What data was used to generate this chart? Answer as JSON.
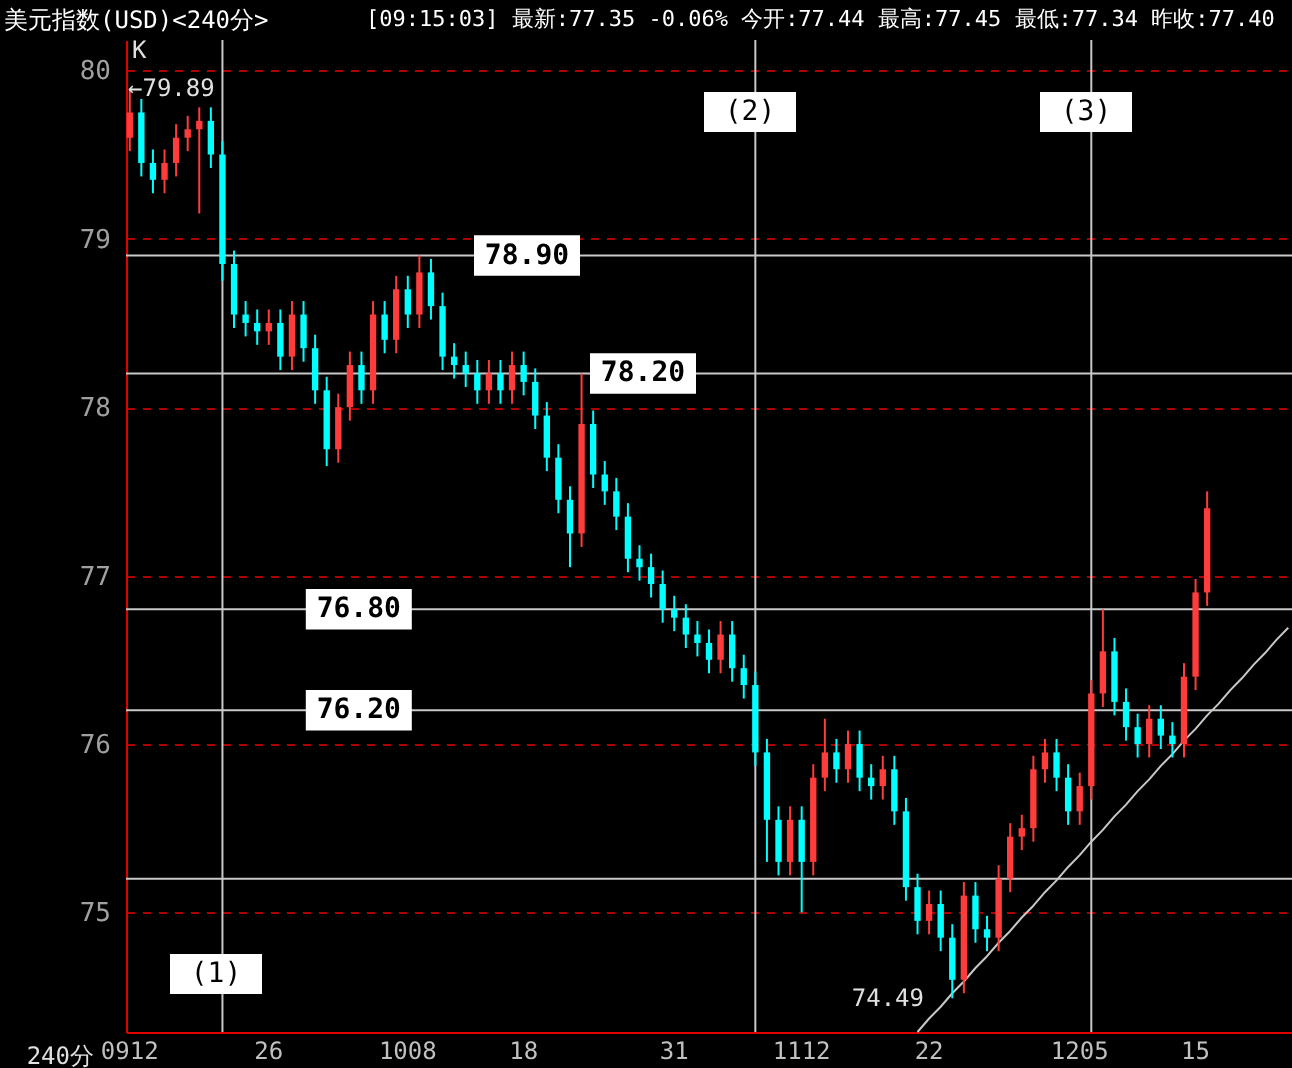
{
  "chart_data": {
    "type": "candlestick",
    "title": "美元指数(USD)<240分>",
    "subtitle": "[09:15:03] 最新:77.35 -0.06% 今开:77.44 最高:77.45 最低:77.34 昨收:77.40",
    "categories": [
      "0912",
      null,
      null,
      null,
      null,
      null,
      null,
      null,
      null,
      null,
      null,
      null,
      "26",
      null,
      null,
      null,
      null,
      null,
      null,
      null,
      null,
      null,
      null,
      null,
      "1008",
      null,
      null,
      null,
      null,
      null,
      null,
      null,
      null,
      null,
      "18",
      null,
      null,
      null,
      null,
      null,
      null,
      null,
      null,
      null,
      null,
      null,
      null,
      "31",
      null,
      null,
      null,
      null,
      null,
      null,
      null,
      null,
      null,
      null,
      "1112",
      null,
      null,
      null,
      null,
      null,
      null,
      null,
      null,
      null,
      null,
      "22",
      null,
      null,
      null,
      null,
      null,
      null,
      null,
      null,
      null,
      null,
      null,
      null,
      "1205",
      null,
      null,
      null,
      null,
      null,
      null,
      null,
      null,
      null,
      "15",
      null,
      null,
      null,
      null,
      null,
      null,
      null,
      null
    ],
    "ohlc": [
      [
        79.6,
        79.89,
        79.52,
        79.75
      ],
      [
        79.75,
        79.83,
        79.37,
        79.45
      ],
      [
        79.45,
        79.53,
        79.27,
        79.35
      ],
      [
        79.35,
        79.53,
        79.27,
        79.45
      ],
      [
        79.45,
        79.68,
        79.37,
        79.6
      ],
      [
        79.6,
        79.73,
        79.52,
        79.65
      ],
      [
        79.65,
        79.78,
        79.15,
        79.7
      ],
      [
        79.7,
        79.78,
        79.42,
        79.5
      ],
      [
        79.5,
        79.58,
        78.75,
        78.85
      ],
      [
        78.85,
        78.93,
        78.47,
        78.55
      ],
      [
        78.55,
        78.63,
        78.42,
        78.5
      ],
      [
        78.5,
        78.58,
        78.37,
        78.45
      ],
      [
        78.45,
        78.58,
        78.37,
        78.5
      ],
      [
        78.5,
        78.58,
        78.22,
        78.3
      ],
      [
        78.3,
        78.63,
        78.22,
        78.55
      ],
      [
        78.55,
        78.63,
        78.27,
        78.35
      ],
      [
        78.35,
        78.43,
        78.02,
        78.1
      ],
      [
        78.1,
        78.18,
        77.65,
        77.75
      ],
      [
        77.75,
        78.08,
        77.67,
        78.0
      ],
      [
        78.0,
        78.33,
        77.92,
        78.25
      ],
      [
        78.25,
        78.33,
        78.02,
        78.1
      ],
      [
        78.1,
        78.63,
        78.02,
        78.55
      ],
      [
        78.55,
        78.63,
        78.32,
        78.4
      ],
      [
        78.4,
        78.78,
        78.32,
        78.7
      ],
      [
        78.7,
        78.78,
        78.47,
        78.55
      ],
      [
        78.55,
        78.9,
        78.47,
        78.8
      ],
      [
        78.8,
        78.88,
        78.52,
        78.6
      ],
      [
        78.6,
        78.68,
        78.22,
        78.3
      ],
      [
        78.3,
        78.38,
        78.17,
        78.25
      ],
      [
        78.25,
        78.33,
        78.12,
        78.2
      ],
      [
        78.2,
        78.28,
        78.02,
        78.1
      ],
      [
        78.1,
        78.28,
        78.02,
        78.2
      ],
      [
        78.2,
        78.28,
        78.02,
        78.1
      ],
      [
        78.1,
        78.33,
        78.02,
        78.25
      ],
      [
        78.25,
        78.33,
        78.07,
        78.15
      ],
      [
        78.15,
        78.23,
        77.87,
        77.95
      ],
      [
        77.95,
        78.03,
        77.62,
        77.7
      ],
      [
        77.7,
        77.78,
        77.37,
        77.45
      ],
      [
        77.45,
        77.53,
        77.05,
        77.25
      ],
      [
        77.25,
        78.2,
        77.17,
        77.9
      ],
      [
        77.9,
        77.98,
        77.52,
        77.6
      ],
      [
        77.6,
        77.68,
        77.42,
        77.5
      ],
      [
        77.5,
        77.58,
        77.27,
        77.35
      ],
      [
        77.35,
        77.43,
        77.02,
        77.1
      ],
      [
        77.1,
        77.18,
        76.97,
        77.05
      ],
      [
        77.05,
        77.13,
        76.87,
        76.95
      ],
      [
        76.95,
        77.03,
        76.72,
        76.8
      ],
      [
        76.8,
        76.88,
        76.67,
        76.75
      ],
      [
        76.75,
        76.83,
        76.57,
        76.65
      ],
      [
        76.65,
        76.73,
        76.52,
        76.6
      ],
      [
        76.6,
        76.68,
        76.42,
        76.5
      ],
      [
        76.5,
        76.73,
        76.42,
        76.65
      ],
      [
        76.65,
        76.73,
        76.37,
        76.45
      ],
      [
        76.45,
        76.53,
        76.27,
        76.35
      ],
      [
        76.35,
        76.43,
        75.87,
        75.95
      ],
      [
        75.95,
        76.03,
        75.3,
        75.55
      ],
      [
        75.55,
        75.63,
        75.22,
        75.3
      ],
      [
        75.3,
        75.63,
        75.22,
        75.55
      ],
      [
        75.55,
        75.63,
        75.0,
        75.3
      ],
      [
        75.3,
        75.88,
        75.22,
        75.8
      ],
      [
        75.8,
        76.15,
        75.72,
        75.95
      ],
      [
        75.95,
        76.03,
        75.77,
        75.85
      ],
      [
        75.85,
        76.08,
        75.77,
        76.0
      ],
      [
        76.0,
        76.08,
        75.72,
        75.8
      ],
      [
        75.8,
        75.88,
        75.67,
        75.75
      ],
      [
        75.75,
        75.93,
        75.67,
        75.85
      ],
      [
        75.85,
        75.93,
        75.52,
        75.6
      ],
      [
        75.6,
        75.68,
        75.07,
        75.15
      ],
      [
        75.15,
        75.23,
        74.87,
        74.95
      ],
      [
        74.95,
        75.13,
        74.87,
        75.05
      ],
      [
        75.05,
        75.13,
        74.77,
        74.85
      ],
      [
        74.85,
        74.93,
        74.49,
        74.6
      ],
      [
        74.6,
        75.18,
        74.52,
        75.1
      ],
      [
        75.1,
        75.18,
        74.82,
        74.9
      ],
      [
        74.9,
        74.98,
        74.77,
        74.85
      ],
      [
        74.85,
        75.28,
        74.77,
        75.2
      ],
      [
        75.2,
        75.53,
        75.12,
        75.45
      ],
      [
        75.45,
        75.58,
        75.37,
        75.5
      ],
      [
        75.5,
        75.93,
        75.42,
        75.85
      ],
      [
        75.85,
        76.03,
        75.77,
        75.95
      ],
      [
        75.95,
        76.03,
        75.72,
        75.8
      ],
      [
        75.8,
        75.88,
        75.52,
        75.6
      ],
      [
        75.6,
        75.83,
        75.52,
        75.75
      ],
      [
        75.75,
        76.38,
        75.67,
        76.3
      ],
      [
        76.3,
        76.8,
        76.22,
        76.55
      ],
      [
        76.55,
        76.63,
        76.17,
        76.25
      ],
      [
        76.25,
        76.33,
        76.02,
        76.1
      ],
      [
        76.1,
        76.18,
        75.92,
        76.0
      ],
      [
        76.0,
        76.23,
        75.92,
        76.15
      ],
      [
        76.15,
        76.23,
        75.97,
        76.05
      ],
      [
        76.05,
        76.13,
        75.92,
        76.0
      ],
      [
        76.0,
        76.48,
        75.92,
        76.4
      ],
      [
        76.4,
        76.98,
        76.32,
        76.9
      ],
      [
        76.9,
        77.5,
        76.82,
        77.4
      ],
      null,
      null,
      null,
      null,
      null,
      null,
      null
    ],
    "colors": [
      "#ff3c3c",
      "#00ffff",
      "#00ffff",
      "#ff3c3c",
      "#ff3c3c",
      "#ff3c3c",
      "#ff3c3c",
      "#00ffff",
      "#00ffff",
      "#00ffff",
      "#00ffff",
      "#00ffff",
      "#ff3c3c",
      "#00ffff",
      "#ff3c3c",
      "#00ffff",
      "#00ffff",
      "#00ffff",
      "#ff3c3c",
      "#ff3c3c",
      "#00ffff",
      "#ff3c3c",
      "#00ffff",
      "#ff3c3c",
      "#00ffff",
      "#ff3c3c",
      "#00ffff",
      "#00ffff",
      "#00ffff",
      "#00ffff",
      "#00ffff",
      "#ff3c3c",
      "#00ffff",
      "#ff3c3c",
      "#00ffff",
      "#00ffff",
      "#00ffff",
      "#00ffff",
      "#00ffff",
      "#ff3c3c",
      "#00ffff",
      "#00ffff",
      "#00ffff",
      "#00ffff",
      "#00ffff",
      "#00ffff",
      "#00ffff",
      "#00ffff",
      "#00ffff",
      "#00ffff",
      "#00ffff",
      "#ff3c3c",
      "#00ffff",
      "#00ffff",
      "#00ffff",
      "#00ffff",
      "#00ffff",
      "#ff3c3c",
      "#00ffff",
      "#ff3c3c",
      "#ff3c3c",
      "#00ffff",
      "#ff3c3c",
      "#00ffff",
      "#00ffff",
      "#ff3c3c",
      "#00ffff",
      "#00ffff",
      "#00ffff",
      "#ff3c3c",
      "#00ffff",
      "#00ffff",
      "#ff3c3c",
      "#00ffff",
      "#00ffff",
      "#ff3c3c",
      "#ff3c3c",
      "#ff3c3c",
      "#ff3c3c",
      "#ff3c3c",
      "#00ffff",
      "#00ffff",
      "#ff3c3c",
      "#ff3c3c",
      "#ff3c3c",
      "#00ffff",
      "#00ffff",
      "#00ffff",
      "#ff3c3c",
      "#00ffff",
      "#00ffff",
      "#ff3c3c",
      "#ff3c3c",
      "#ff3c3c",
      null,
      null,
      null,
      null,
      null,
      null,
      null
    ],
    "series": [
      {
        "type": "line",
        "color": "#c8c8c8",
        "values": [
          null,
          null,
          null,
          null,
          null,
          null,
          null,
          null,
          null,
          null,
          null,
          null,
          null,
          null,
          null,
          null,
          null,
          null,
          null,
          null,
          null,
          null,
          null,
          null,
          null,
          null,
          null,
          null,
          null,
          null,
          null,
          null,
          null,
          null,
          null,
          null,
          null,
          null,
          null,
          null,
          null,
          null,
          null,
          null,
          null,
          null,
          null,
          null,
          null,
          null,
          null,
          null,
          null,
          null,
          null,
          null,
          null,
          null,
          null,
          null,
          null,
          null,
          null,
          null,
          null,
          null,
          null,
          null,
          74.29,
          74.37,
          74.44,
          74.52,
          74.59,
          74.67,
          74.74,
          74.82,
          74.89,
          74.97,
          75.04,
          75.12,
          75.19,
          75.27,
          75.34,
          75.42,
          75.49,
          75.57,
          75.64,
          75.72,
          75.79,
          75.87,
          75.94,
          76.02,
          76.09,
          76.17,
          76.24,
          76.32,
          76.39,
          76.47,
          76.54,
          76.62,
          76.69
        ]
      }
    ],
    "ylim": [
      74.29,
      80.18
    ],
    "yticks": [
      75,
      76,
      77,
      78,
      79,
      80
    ],
    "grid": "y",
    "ref_lines": [
      {
        "axis": "y",
        "value": 78.9,
        "label": "78.90",
        "color": "#c8c8c8"
      },
      {
        "axis": "y",
        "value": 78.2,
        "label": "78.20",
        "color": "#c8c8c8"
      },
      {
        "axis": "y",
        "value": 76.8,
        "label": "76.80",
        "color": "#c8c8c8"
      },
      {
        "axis": "y",
        "value": 76.2,
        "label": "76.20",
        "color": "#c8c8c8"
      },
      {
        "axis": "y",
        "value": 75.2,
        "color": "#c8c8c8"
      }
    ],
    "annotations": [
      "←79.89",
      "74.49",
      "(1)",
      "(2)",
      "(3)",
      "K",
      "240分"
    ]
  }
}
